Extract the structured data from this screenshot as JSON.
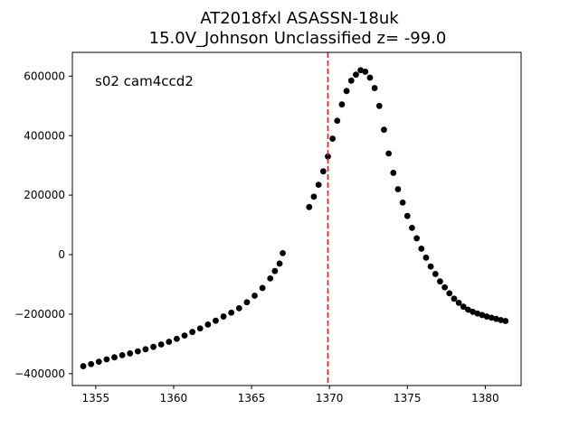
{
  "chart_data": {
    "type": "scatter",
    "title": "AT2018fxl  ASASSN-18uk",
    "subtitle": "15.0V_Johnson Unclassified z= -99.0",
    "annotation": "s02 cam4ccd2",
    "xlabel": "",
    "ylabel": "",
    "xlim": [
      1353.5,
      1382.3
    ],
    "ylim": [
      -440000,
      680000
    ],
    "grid": false,
    "x_ticks": [
      1355,
      1360,
      1365,
      1370,
      1375,
      1380
    ],
    "x_tick_labels": [
      "1355",
      "1360",
      "1365",
      "1370",
      "1375",
      "1380"
    ],
    "y_ticks": [
      -400000,
      -200000,
      0,
      200000,
      400000,
      600000
    ],
    "y_tick_labels": [
      "−400000",
      "−200000",
      "0",
      "200000",
      "400000",
      "600000"
    ],
    "vline": {
      "x": 1369.9,
      "color": "#d62728",
      "style": "dashed"
    },
    "marker_color": "#000000",
    "series": [
      {
        "x": [
          1354.2,
          1354.7,
          1355.2,
          1355.7,
          1356.2,
          1356.7,
          1357.2,
          1357.7,
          1358.2,
          1358.7,
          1359.2,
          1359.7,
          1360.2,
          1360.7,
          1361.2,
          1361.7,
          1362.2,
          1362.7,
          1363.2,
          1363.7,
          1364.2,
          1364.7,
          1365.2,
          1365.7,
          1366.2,
          1366.5,
          1366.8,
          1367.0
        ],
        "y": [
          -375000,
          -368000,
          -360000,
          -352000,
          -345000,
          -338000,
          -332000,
          -325000,
          -318000,
          -310000,
          -302000,
          -293000,
          -283000,
          -272000,
          -260000,
          -248000,
          -235000,
          -222000,
          -208000,
          -195000,
          -180000,
          -160000,
          -138000,
          -112000,
          -80000,
          -55000,
          -30000,
          5000
        ]
      },
      {
        "x": [
          1368.7,
          1369.0,
          1369.3,
          1369.6,
          1369.9,
          1370.2,
          1370.5,
          1370.8,
          1371.1,
          1371.4,
          1371.7,
          1372.0,
          1372.3,
          1372.6,
          1372.9,
          1373.2,
          1373.5,
          1373.8,
          1374.1,
          1374.4,
          1374.7,
          1375.0,
          1375.3,
          1375.6,
          1375.9,
          1376.2,
          1376.5,
          1376.8,
          1377.1,
          1377.4,
          1377.7,
          1378.0,
          1378.3,
          1378.6,
          1378.9,
          1379.2,
          1379.5,
          1379.8,
          1380.1,
          1380.4,
          1380.7,
          1381.0,
          1381.3
        ],
        "y": [
          160000,
          195000,
          235000,
          280000,
          330000,
          390000,
          450000,
          505000,
          550000,
          585000,
          605000,
          620000,
          615000,
          595000,
          560000,
          500000,
          420000,
          340000,
          275000,
          220000,
          175000,
          130000,
          90000,
          55000,
          20000,
          -10000,
          -40000,
          -65000,
          -90000,
          -110000,
          -130000,
          -148000,
          -162000,
          -175000,
          -185000,
          -192000,
          -198000,
          -203000,
          -208000,
          -212000,
          -216000,
          -220000,
          -223000
        ]
      }
    ]
  }
}
